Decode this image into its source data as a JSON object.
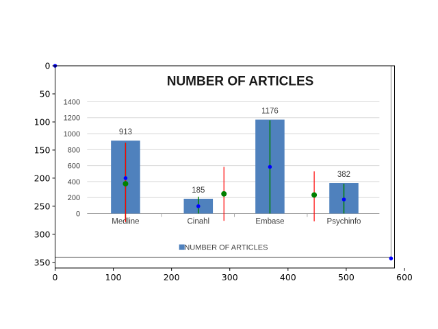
{
  "chart_data": [
    {
      "type": "image",
      "x_ticks": [
        "0",
        "100",
        "200",
        "300",
        "400",
        "500",
        "600"
      ],
      "y_ticks": [
        "0",
        "50",
        "100",
        "150",
        "200",
        "250",
        "300",
        "350"
      ],
      "xlim": [
        0,
        583
      ],
      "ylim": [
        360,
        0
      ],
      "frame_lines": {
        "vertical_x": 577,
        "horizontal_y": 341
      },
      "corner_points": [
        {
          "x": 0,
          "y": 0,
          "color": "#0000ff"
        },
        {
          "x": 577,
          "y": 343,
          "color": "#0000ff"
        }
      ],
      "error_bars": [
        {
          "x": 121,
          "y": 210,
          "ymin": 137,
          "ymax": 278,
          "color": "#ff0000"
        },
        {
          "x": 290,
          "y": 228,
          "ymin": 180,
          "ymax": 276,
          "color": "#ff0000"
        },
        {
          "x": 445,
          "y": 230,
          "ymin": 188,
          "ymax": 277,
          "color": "#ff0000"
        }
      ],
      "inner_segments": [
        {
          "x": 121,
          "ymin": 137,
          "ymax": 277,
          "color": "#008000"
        },
        {
          "x": 246,
          "ymin": 233,
          "ymax": 263,
          "color": "#008000"
        },
        {
          "x": 369,
          "ymin": 97,
          "ymax": 263,
          "color": "#008000"
        },
        {
          "x": 496,
          "ymin": 210,
          "ymax": 263,
          "color": "#008000"
        }
      ],
      "green_markers": [
        {
          "x": 121,
          "y": 210
        },
        {
          "x": 290,
          "y": 228
        },
        {
          "x": 445,
          "y": 230
        }
      ],
      "blue_markers": [
        {
          "x": 121,
          "y": 200
        },
        {
          "x": 246,
          "y": 250
        },
        {
          "x": 369,
          "y": 180
        },
        {
          "x": 496,
          "y": 238
        }
      ]
    },
    {
      "type": "bar",
      "title": "NUMBER OF ARTICLES",
      "categories": [
        "Medline",
        "Cinahl",
        "Embase",
        "Psychinfo"
      ],
      "series": [
        {
          "name": "NUMBER OF ARTICLES",
          "values": [
            913,
            185,
            1176,
            382
          ],
          "color": "#4f81bd"
        }
      ],
      "data_labels": [
        "913",
        "185",
        "1176",
        "382"
      ],
      "ylim": [
        0,
        1400
      ],
      "y_ticks": [
        "0",
        "200",
        "400",
        "600",
        "800",
        "1000",
        "1200",
        "1400"
      ],
      "grid": true,
      "legend": "bottom"
    }
  ]
}
